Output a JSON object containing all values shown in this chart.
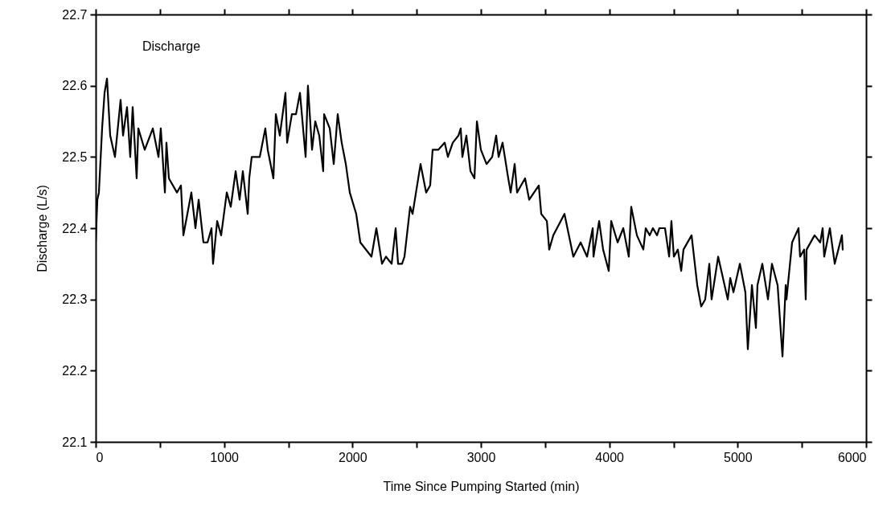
{
  "chart_data": {
    "type": "line",
    "xlabel": "Time Since Pumping Started (min)",
    "ylabel": "Discharge (L/s)",
    "annotations": [
      "Discharge"
    ],
    "xlim": [
      0,
      6000
    ],
    "xticks": [
      0,
      {
        "value": 500,
        "label": null
      },
      1000,
      {
        "value": 1500,
        "label": null
      },
      2000,
      {
        "value": 2500,
        "label": null
      },
      3000,
      {
        "value": 3500,
        "label": null
      },
      4000,
      {
        "value": 4500,
        "label": null
      },
      5000,
      {
        "value": 5500,
        "label": null
      },
      6000
    ],
    "ylim": [
      22.1,
      22.7
    ],
    "yticks": [
      22.1,
      22.2,
      22.3,
      22.4,
      22.5,
      22.6,
      22.7
    ],
    "grid": false,
    "marker": "none",
    "line_style": "solid",
    "series": [
      {
        "color": "#000000",
        "x": [
          0,
          13,
          25,
          50,
          69,
          88,
          113,
          150,
          194,
          213,
          244,
          269,
          288,
          319,
          332,
          382,
          445,
          489,
          507,
          539,
          551,
          570,
          633,
          664,
          683,
          714,
          745,
          777,
          802,
          839,
          871,
          902,
          914,
          946,
          977,
          1021,
          1052,
          1090,
          1121,
          1146,
          1184,
          1196,
          1215,
          1278,
          1321,
          1340,
          1384,
          1403,
          1434,
          1478,
          1491,
          1528,
          1560,
          1591,
          1635,
          1653,
          1685,
          1710,
          1741,
          1772,
          1779,
          1823,
          1854,
          1885,
          1916,
          1948,
          1979,
          2029,
          2061,
          2148,
          2186,
          2230,
          2261,
          2305,
          2336,
          2355,
          2386,
          2405,
          2449,
          2468,
          2530,
          2574,
          2605,
          2624,
          2668,
          2718,
          2743,
          2781,
          2825,
          2843,
          2856,
          2887,
          2919,
          2950,
          2969,
          3000,
          3044,
          3088,
          3119,
          3138,
          3169,
          3213,
          3232,
          3263,
          3282,
          3313,
          3344,
          3376,
          3451,
          3470,
          3514,
          3532,
          3564,
          3651,
          3720,
          3777,
          3827,
          3871,
          3877,
          3921,
          3952,
          3996,
          4015,
          4065,
          4109,
          4152,
          4171,
          4215,
          4265,
          4284,
          4315,
          4340,
          4372,
          4390,
          4434,
          4466,
          4484,
          4503,
          4534,
          4560,
          4578,
          4641,
          4685,
          4716,
          4747,
          4779,
          4797,
          4848,
          4923,
          4942,
          4967,
          5017,
          5060,
          5079,
          5111,
          5142,
          5154,
          5192,
          5236,
          5267,
          5311,
          5349,
          5374,
          5380,
          5424,
          5474,
          5486,
          5518,
          5530,
          5537,
          5599,
          5643,
          5662,
          5674,
          5718,
          5756,
          5812,
          5818
        ],
        "values": [
          22.38,
          22.44,
          22.45,
          22.54,
          22.59,
          22.61,
          22.53,
          22.5,
          22.58,
          22.53,
          22.57,
          22.5,
          22.57,
          22.47,
          22.54,
          22.51,
          22.54,
          22.5,
          22.54,
          22.45,
          22.52,
          22.47,
          22.45,
          22.46,
          22.39,
          22.42,
          22.45,
          22.4,
          22.44,
          22.38,
          22.38,
          22.4,
          22.35,
          22.41,
          22.39,
          22.45,
          22.43,
          22.48,
          22.44,
          22.48,
          22.42,
          22.47,
          22.5,
          22.5,
          22.54,
          22.51,
          22.47,
          22.56,
          22.53,
          22.59,
          22.52,
          22.56,
          22.56,
          22.59,
          22.5,
          22.6,
          22.51,
          22.55,
          22.53,
          22.48,
          22.56,
          22.54,
          22.49,
          22.56,
          22.52,
          22.49,
          22.45,
          22.42,
          22.38,
          22.36,
          22.4,
          22.35,
          22.36,
          22.35,
          22.4,
          22.35,
          22.35,
          22.36,
          22.43,
          22.42,
          22.49,
          22.45,
          22.46,
          22.51,
          22.51,
          22.52,
          22.5,
          22.52,
          22.53,
          22.54,
          22.5,
          22.53,
          22.48,
          22.47,
          22.55,
          22.51,
          22.49,
          22.5,
          22.53,
          22.5,
          22.52,
          22.47,
          22.45,
          22.49,
          22.45,
          22.46,
          22.47,
          22.44,
          22.46,
          22.42,
          22.41,
          22.37,
          22.39,
          22.42,
          22.36,
          22.38,
          22.36,
          22.4,
          22.36,
          22.41,
          22.37,
          22.34,
          22.41,
          22.38,
          22.4,
          22.36,
          22.43,
          22.39,
          22.37,
          22.4,
          22.39,
          22.4,
          22.39,
          22.4,
          22.4,
          22.36,
          22.41,
          22.36,
          22.37,
          22.34,
          22.37,
          22.39,
          22.32,
          22.29,
          22.3,
          22.35,
          22.3,
          22.36,
          22.3,
          22.33,
          22.31,
          22.35,
          22.31,
          22.23,
          22.32,
          22.26,
          22.32,
          22.35,
          22.3,
          22.35,
          22.32,
          22.22,
          22.32,
          22.3,
          22.38,
          22.4,
          22.36,
          22.37,
          22.3,
          22.37,
          22.39,
          22.38,
          22.4,
          22.36,
          22.4,
          22.35,
          22.39,
          22.37
        ]
      }
    ]
  }
}
